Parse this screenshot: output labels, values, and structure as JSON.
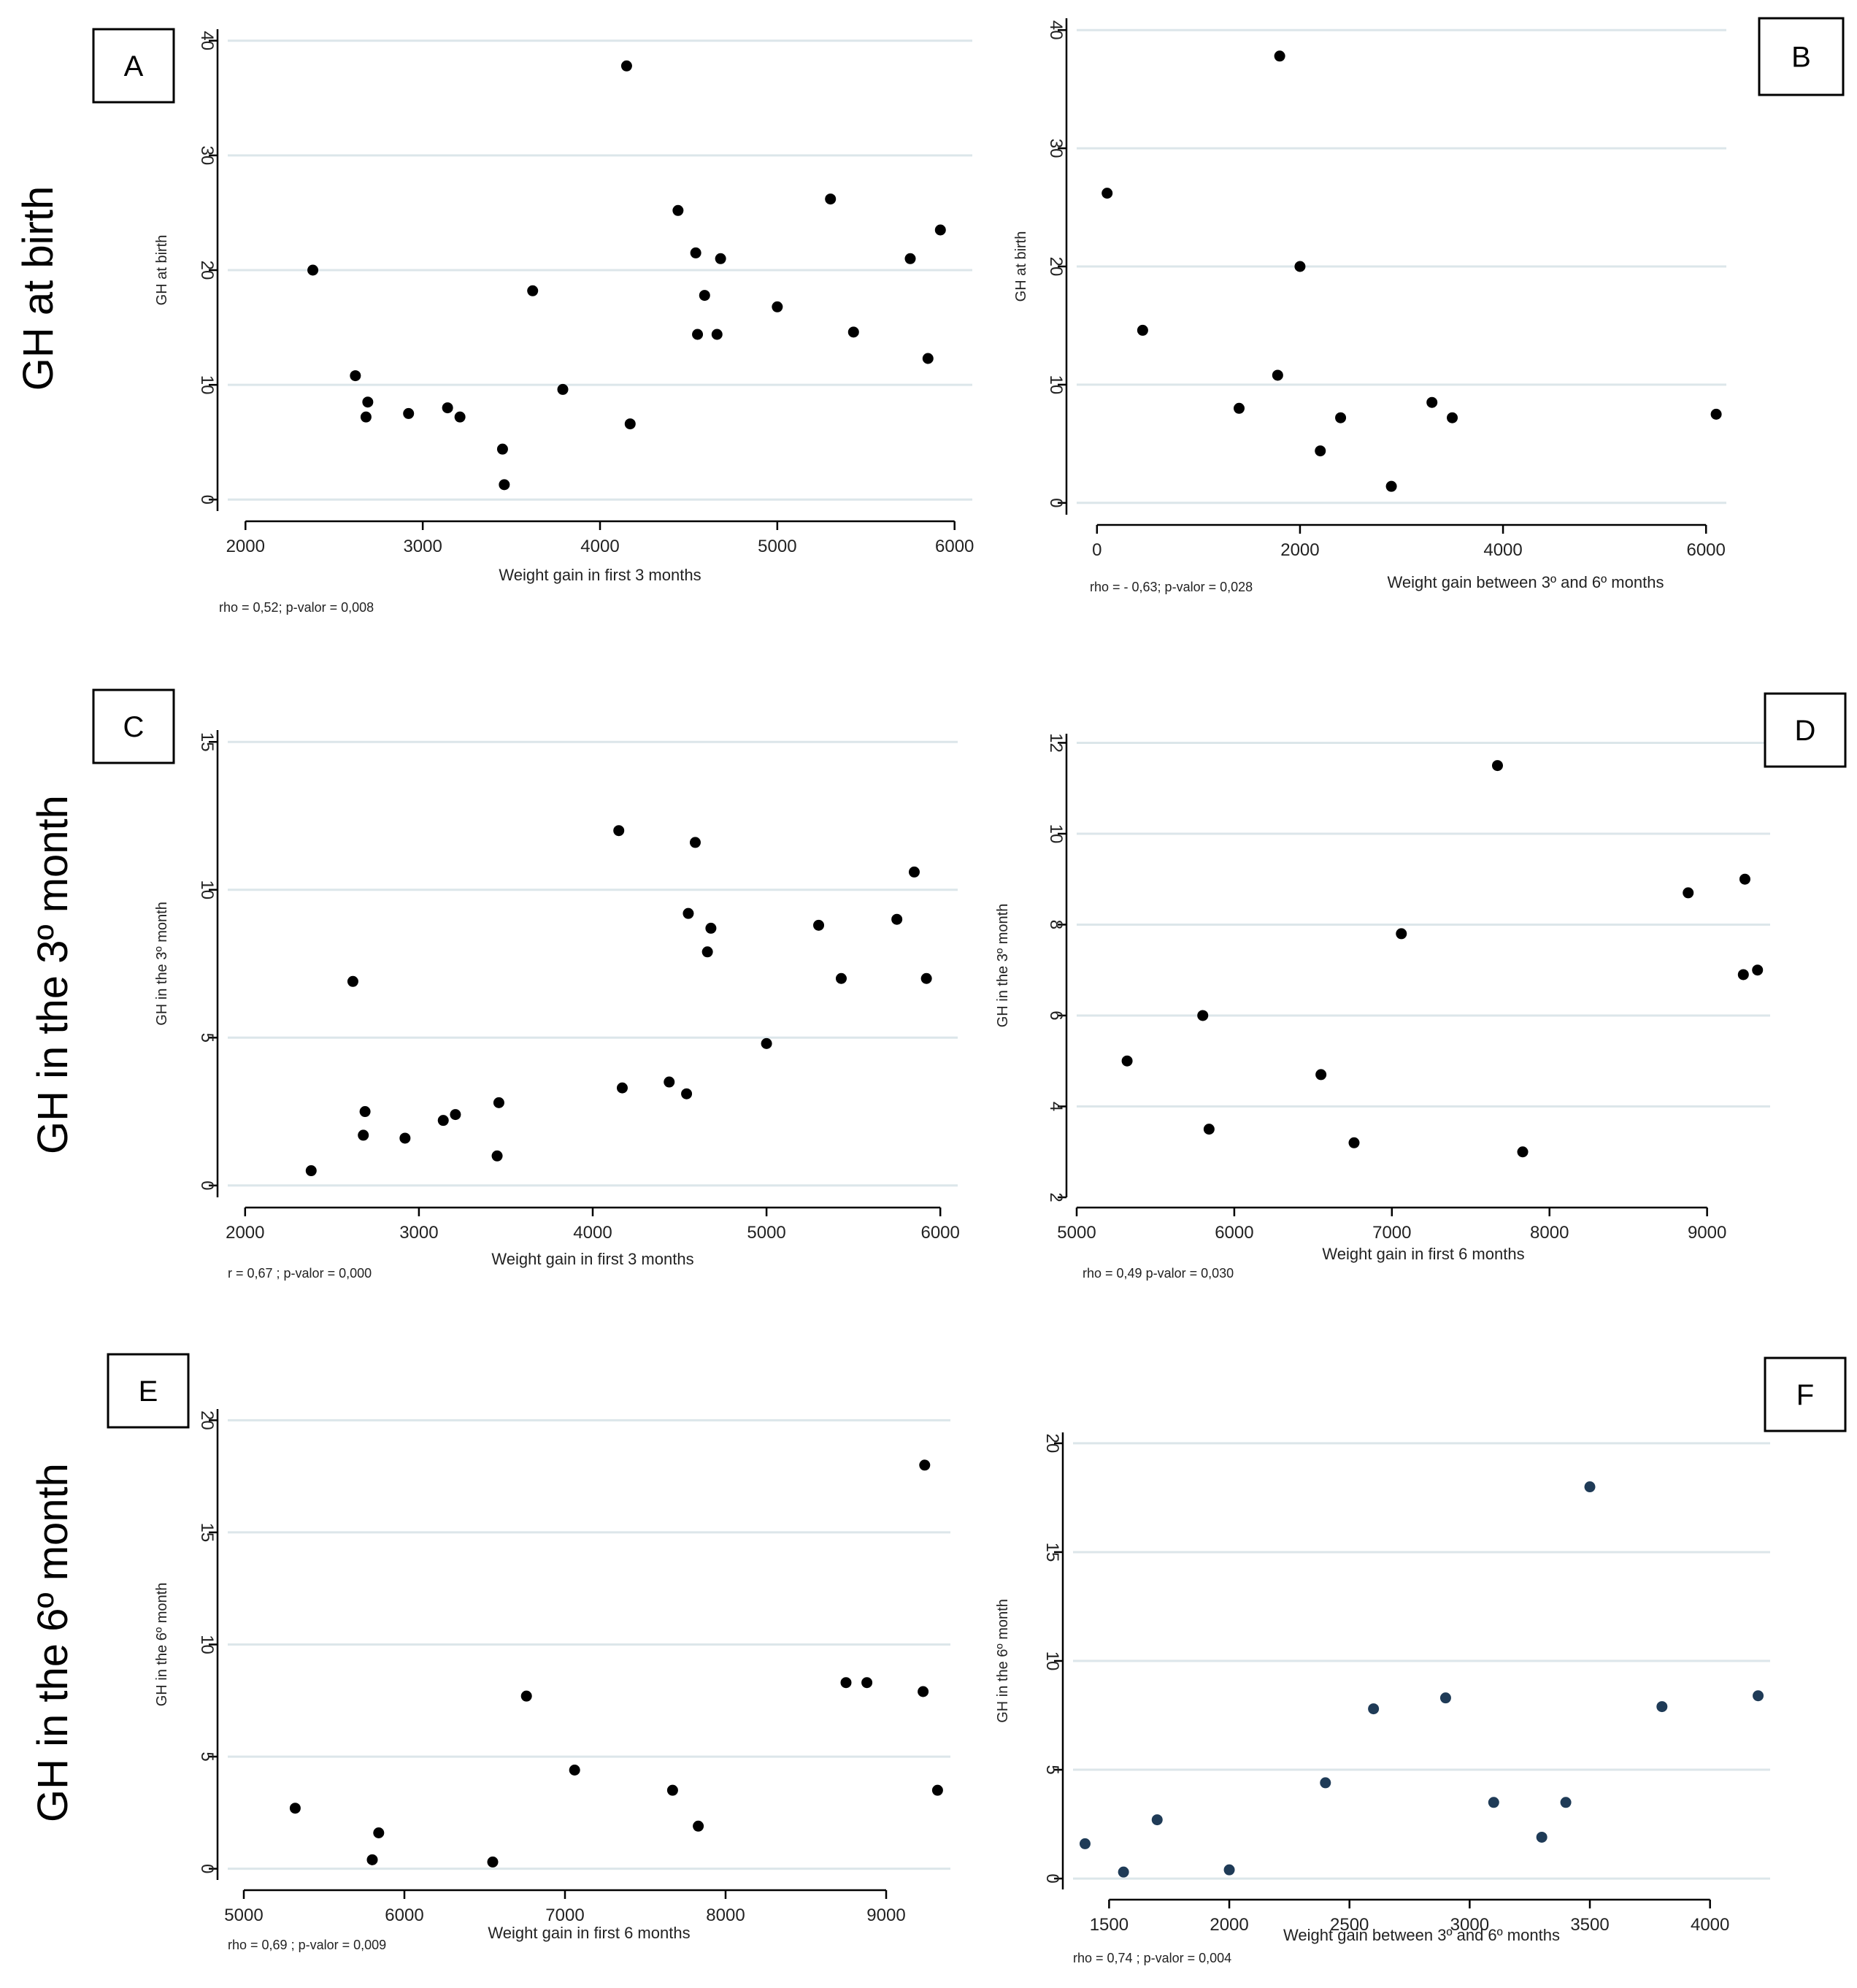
{
  "row_labels": [
    "GH at birth",
    "GH in the 3º month",
    "GH in the 6º month"
  ],
  "colors": {
    "point": "#000000",
    "point_blue": "#1f3b57",
    "grid": "#dce6ea",
    "axis": "#000000"
  },
  "chart_data": [
    {
      "id": "A",
      "type": "scatter",
      "letter": "A",
      "xlabel": "Weight gain in first 3 months",
      "ylabel": "GH at birth",
      "stat": "rho = 0,52; p-valor = 0,008",
      "xlim": [
        1900,
        6100
      ],
      "ylim": [
        -1,
        41
      ],
      "xticks": [
        2000,
        3000,
        4000,
        5000,
        6000
      ],
      "yticks": [
        0,
        10,
        20,
        30,
        40
      ],
      "x": [
        2380,
        2620,
        2680,
        2690,
        2920,
        3140,
        3210,
        3450,
        3460,
        3620,
        3790,
        4150,
        4170,
        4440,
        4540,
        4550,
        4590,
        4660,
        4680,
        5000,
        5300,
        5430,
        5750,
        5850,
        5920
      ],
      "y": [
        20,
        10.8,
        7.2,
        8.5,
        7.5,
        8.0,
        7.2,
        4.4,
        1.3,
        18.2,
        9.6,
        37.8,
        6.6,
        25.2,
        21.5,
        14.4,
        17.8,
        14.4,
        21.0,
        16.8,
        26.2,
        14.6,
        21.0,
        12.3,
        23.5
      ]
    },
    {
      "id": "B",
      "type": "scatter",
      "letter": "B",
      "xlabel": "Weight gain between 3º and 6º months",
      "ylabel": "GH at birth",
      "stat": "rho = - 0,63; p-valor = 0,028",
      "xlim": [
        -200,
        6200
      ],
      "ylim": [
        -1,
        41
      ],
      "xticks": [
        0,
        2000,
        4000,
        6000
      ],
      "yticks": [
        0,
        10,
        20,
        30,
        40
      ],
      "x": [
        100,
        450,
        1400,
        1780,
        1800,
        2000,
        2200,
        2400,
        2900,
        3300,
        3500,
        6100
      ],
      "y": [
        26.2,
        14.6,
        8.0,
        10.8,
        37.8,
        20.0,
        4.4,
        7.2,
        1.4,
        8.5,
        7.2,
        7.5
      ]
    },
    {
      "id": "C",
      "type": "scatter",
      "letter": "C",
      "xlabel": "Weight gain in first 3 months",
      "ylabel": "GH in the 3º month",
      "stat": "r = 0,67 ; p-valor = 0,000",
      "xlim": [
        1900,
        6100
      ],
      "ylim": [
        -0.4,
        15.4
      ],
      "xticks": [
        2000,
        3000,
        4000,
        5000,
        6000
      ],
      "yticks": [
        0,
        5,
        10,
        15
      ],
      "x": [
        2380,
        2620,
        2680,
        2690,
        2920,
        3140,
        3210,
        3450,
        3460,
        4150,
        4170,
        4440,
        4540,
        4550,
        4590,
        4660,
        4680,
        5000,
        5300,
        5430,
        5750,
        5850,
        5920
      ],
      "y": [
        0.5,
        6.9,
        1.7,
        2.5,
        1.6,
        2.2,
        2.4,
        1.0,
        2.8,
        12.0,
        3.3,
        3.5,
        3.1,
        9.2,
        11.6,
        7.9,
        8.7,
        4.8,
        8.8,
        7.0,
        9.0,
        10.6,
        7.0
      ]
    },
    {
      "id": "D",
      "type": "scatter",
      "letter": "D",
      "xlabel": "Weight gain in first 6 months",
      "ylabel": "GH in the 3º month",
      "stat": "rho = 0,49  p-valor = 0,030",
      "xlim": [
        5000,
        9400
      ],
      "ylim": [
        2,
        12.2
      ],
      "xticks": [
        5000,
        6000,
        7000,
        8000,
        9000
      ],
      "yticks": [
        2,
        4,
        6,
        8,
        10,
        12
      ],
      "x": [
        5320,
        5800,
        5840,
        6550,
        6760,
        7060,
        7670,
        7830,
        8880,
        9230,
        9240,
        9320
      ],
      "y": [
        5.0,
        6.0,
        3.5,
        4.7,
        3.2,
        7.8,
        11.5,
        3.0,
        8.7,
        6.9,
        9.0,
        7.0
      ]
    },
    {
      "id": "E",
      "type": "scatter",
      "letter": "E",
      "xlabel": "Weight gain in first 6 months",
      "ylabel": "GH in the 6º month",
      "stat": "rho = 0,69 ; p-valor = 0,009",
      "xlim": [
        4900,
        9400
      ],
      "ylim": [
        -0.5,
        20.5
      ],
      "xticks": [
        5000,
        6000,
        7000,
        8000,
        9000
      ],
      "yticks": [
        0,
        5,
        10,
        15,
        20
      ],
      "x": [
        5320,
        5800,
        5840,
        6550,
        6760,
        7060,
        7670,
        7830,
        8750,
        8880,
        9230,
        9240,
        9320
      ],
      "y": [
        2.7,
        0.4,
        1.6,
        0.3,
        7.7,
        4.4,
        3.5,
        1.9,
        8.3,
        8.3,
        7.9,
        18.0,
        3.5
      ]
    },
    {
      "id": "F",
      "type": "scatter",
      "letter": "F",
      "xlabel": "Weight gain between 3º and 6º months",
      "ylabel": "GH in the 6º month",
      "stat": "rho = 0,74 ; p-valor = 0,004",
      "xlim": [
        1350,
        4250
      ],
      "ylim": [
        -0.5,
        20.5
      ],
      "xticks": [
        1500,
        2000,
        2500,
        3000,
        3500,
        4000
      ],
      "yticks": [
        0,
        5,
        10,
        15,
        20
      ],
      "x": [
        1400,
        1560,
        1700,
        2000,
        2400,
        2600,
        2900,
        3100,
        3300,
        3400,
        3500,
        3800,
        4200
      ],
      "y": [
        1.6,
        0.3,
        2.7,
        0.4,
        4.4,
        7.8,
        8.3,
        3.5,
        1.9,
        3.5,
        18.0,
        7.9,
        8.4
      ]
    }
  ]
}
